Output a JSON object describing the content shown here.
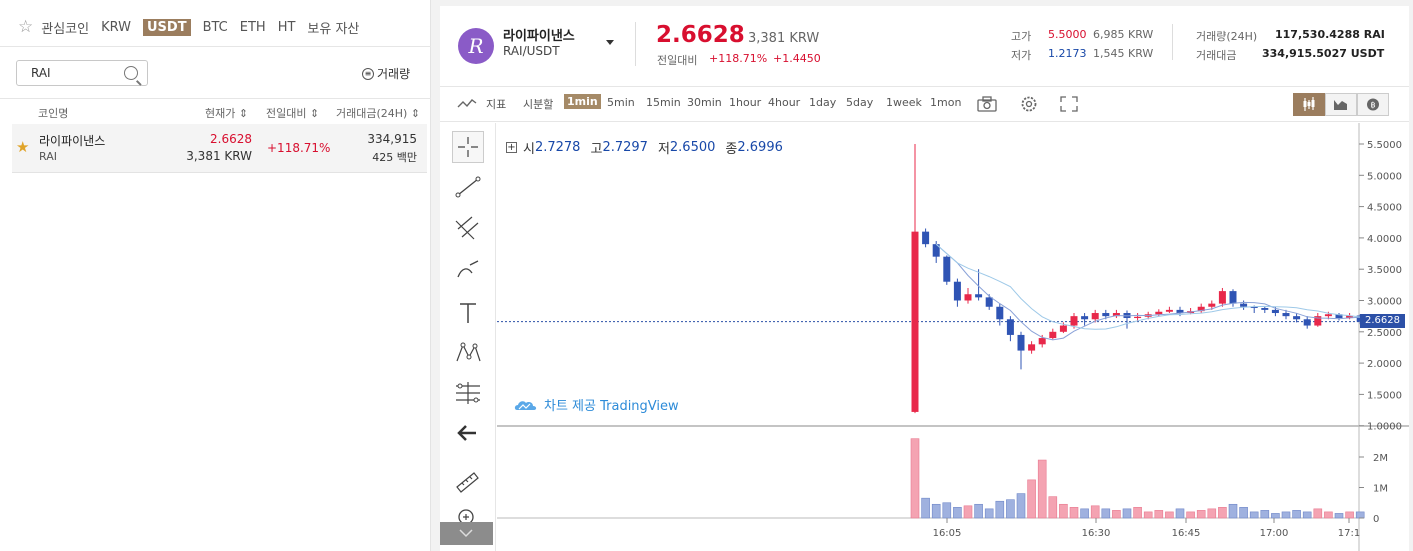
{
  "left": {
    "tabs": [
      "관심코인",
      "KRW",
      "USDT",
      "BTC",
      "ETH",
      "HT",
      "보유 자산"
    ],
    "active_tab": "USDT",
    "search_value": "RAI",
    "sort_label": "거래량",
    "columns": [
      "코인명",
      "현재가",
      "전일대비",
      "거래대금(24H)"
    ],
    "rows": [
      {
        "name": "라이파이낸스",
        "symbol": "RAI",
        "price": "2.6628",
        "price_krw": "3,381 KRW",
        "change": "+118.71%",
        "volume": "334,915",
        "volume_sub": "425 백만"
      }
    ]
  },
  "header": {
    "logo_letter": "R",
    "coin_name": "라이파이낸스",
    "pair": "RAI/USDT",
    "price": "2.6628",
    "price_krw": "3,381 KRW",
    "change_label": "전일대비",
    "change_pct": "+118.71%",
    "change_abs": "+1.4450",
    "high_label": "고가",
    "high": "5.5000",
    "high_krw": "6,985 KRW",
    "low_label": "저가",
    "low": "1.2173",
    "low_krw": "1,545 KRW",
    "vol_label": "거래량(24H)",
    "vol": "117,530.4288 RAI",
    "amt_label": "거래대금",
    "amt": "334,915.5027 USDT"
  },
  "toolbar": {
    "indicator_label": "지표",
    "time_label": "시분할",
    "intervals": [
      "1min",
      "5min",
      "15min",
      "30min",
      "1hour",
      "4hour",
      "1day",
      "5day",
      "1week",
      "1mon"
    ],
    "active_interval": "1min"
  },
  "legend": {
    "open_label": "시",
    "open": "2.7278",
    "high_label": "고",
    "high": "2.7297",
    "low_label": "저",
    "low": "2.6500",
    "close_label": "종",
    "close": "2.6996"
  },
  "watermark": "차트 제공 TradingView",
  "colors": {
    "up": "#e8284a",
    "down": "#2f54b4",
    "accent": "#9b7d5e"
  },
  "chart_data": {
    "type": "candlestick",
    "x_ticks": [
      "16:05",
      "16:30",
      "16:45",
      "17:00",
      "17:1"
    ],
    "y_ticks": [
      "5.5000",
      "5.0000",
      "4.5000",
      "4.0000",
      "3.5000",
      "3.0000",
      "2.5000",
      "2.0000",
      "1.5000",
      "1.0000"
    ],
    "last_price_tag": "2.6628",
    "volume_ticks": [
      "2M",
      "1M",
      "0"
    ],
    "candles": [
      [
        1.22,
        4.1,
        5.5,
        1.2
      ],
      [
        4.1,
        3.9,
        4.15,
        3.85
      ],
      [
        3.9,
        3.7,
        3.95,
        3.6
      ],
      [
        3.7,
        3.3,
        3.72,
        3.25
      ],
      [
        3.3,
        3.0,
        3.35,
        2.9
      ],
      [
        3.0,
        3.1,
        3.2,
        2.95
      ],
      [
        3.1,
        3.05,
        3.5,
        3.0
      ],
      [
        3.05,
        2.9,
        3.1,
        2.85
      ],
      [
        2.9,
        2.7,
        2.95,
        2.6
      ],
      [
        2.7,
        2.45,
        2.75,
        2.35
      ],
      [
        2.45,
        2.2,
        2.5,
        1.9
      ],
      [
        2.2,
        2.3,
        2.35,
        2.15
      ],
      [
        2.3,
        2.4,
        2.45,
        2.25
      ],
      [
        2.4,
        2.5,
        2.55,
        2.38
      ],
      [
        2.5,
        2.6,
        2.65,
        2.48
      ],
      [
        2.6,
        2.75,
        2.8,
        2.55
      ],
      [
        2.75,
        2.7,
        2.8,
        2.6
      ],
      [
        2.7,
        2.8,
        2.85,
        2.65
      ],
      [
        2.8,
        2.75,
        2.85,
        2.7
      ],
      [
        2.75,
        2.8,
        2.85,
        2.72
      ],
      [
        2.8,
        2.72,
        2.84,
        2.55
      ],
      [
        2.72,
        2.74,
        2.8,
        2.68
      ],
      [
        2.74,
        2.78,
        2.82,
        2.7
      ],
      [
        2.78,
        2.82,
        2.86,
        2.75
      ],
      [
        2.82,
        2.85,
        2.9,
        2.8
      ],
      [
        2.85,
        2.8,
        2.9,
        2.75
      ],
      [
        2.8,
        2.83,
        2.88,
        2.78
      ],
      [
        2.83,
        2.9,
        2.95,
        2.8
      ],
      [
        2.9,
        2.95,
        3.0,
        2.85
      ],
      [
        2.95,
        3.15,
        3.2,
        2.9
      ],
      [
        3.15,
        2.95,
        3.18,
        2.9
      ],
      [
        2.95,
        2.9,
        3.0,
        2.85
      ],
      [
        2.9,
        2.88,
        2.92,
        2.8
      ],
      [
        2.88,
        2.85,
        2.9,
        2.8
      ],
      [
        2.85,
        2.8,
        2.9,
        2.75
      ],
      [
        2.8,
        2.75,
        2.85,
        2.7
      ],
      [
        2.75,
        2.7,
        2.8,
        2.65
      ],
      [
        2.7,
        2.6,
        2.75,
        2.55
      ],
      [
        2.6,
        2.75,
        2.8,
        2.58
      ],
      [
        2.75,
        2.78,
        2.82,
        2.7
      ],
      [
        2.78,
        2.72,
        2.8,
        2.68
      ],
      [
        2.72,
        2.76,
        2.8,
        2.7
      ],
      [
        2.76,
        2.66,
        2.78,
        2.62
      ]
    ],
    "volumes": [
      2.6,
      0.65,
      0.45,
      0.5,
      0.35,
      0.4,
      0.45,
      0.3,
      0.55,
      0.6,
      0.8,
      1.25,
      1.9,
      0.7,
      0.45,
      0.35,
      0.3,
      0.4,
      0.3,
      0.25,
      0.3,
      0.35,
      0.2,
      0.25,
      0.2,
      0.3,
      0.2,
      0.25,
      0.3,
      0.35,
      0.45,
      0.35,
      0.2,
      0.25,
      0.15,
      0.2,
      0.25,
      0.2,
      0.3,
      0.2,
      0.15,
      0.2,
      0.2
    ]
  }
}
